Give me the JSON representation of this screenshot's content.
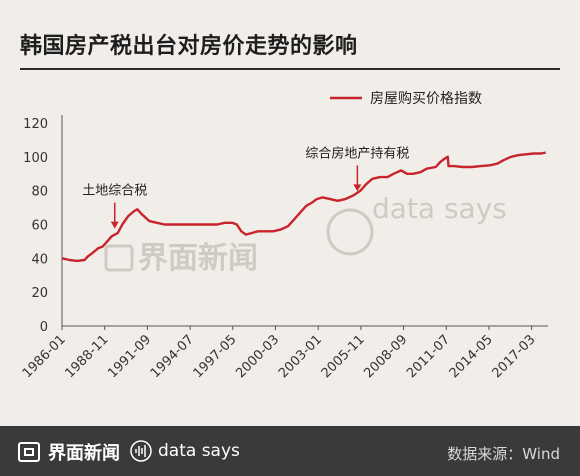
{
  "title": "韩国房产税出台对房价走势的影响",
  "chart_data": {
    "type": "line",
    "series": [
      {
        "name": "房屋购买价格指数",
        "color": "#c8242b",
        "points": [
          [
            1986.0,
            40
          ],
          [
            1986.5,
            39
          ],
          [
            1987.0,
            38.5
          ],
          [
            1987.5,
            39
          ],
          [
            1987.7,
            41
          ],
          [
            1988.0,
            43
          ],
          [
            1988.4,
            46
          ],
          [
            1988.7,
            47
          ],
          [
            1989.0,
            50
          ],
          [
            1989.3,
            53
          ],
          [
            1989.7,
            55
          ],
          [
            1990.0,
            60
          ],
          [
            1990.4,
            65
          ],
          [
            1990.8,
            68
          ],
          [
            1991.0,
            69
          ],
          [
            1991.3,
            66
          ],
          [
            1991.8,
            62
          ],
          [
            1992.3,
            61
          ],
          [
            1992.8,
            60
          ],
          [
            1993.5,
            60
          ],
          [
            1994.5,
            60
          ],
          [
            1995.5,
            60
          ],
          [
            1996.3,
            60
          ],
          [
            1996.8,
            61
          ],
          [
            1997.3,
            61
          ],
          [
            1997.6,
            60
          ],
          [
            1997.9,
            56
          ],
          [
            1998.2,
            54
          ],
          [
            1998.6,
            55
          ],
          [
            1999.0,
            56
          ],
          [
            1999.5,
            56
          ],
          [
            2000.0,
            56
          ],
          [
            2000.5,
            57
          ],
          [
            2001.0,
            59
          ],
          [
            2001.4,
            63
          ],
          [
            2001.8,
            67
          ],
          [
            2002.2,
            71
          ],
          [
            2002.6,
            73
          ],
          [
            2002.9,
            75
          ],
          [
            2003.3,
            76
          ],
          [
            2003.8,
            75
          ],
          [
            2004.3,
            74
          ],
          [
            2004.8,
            75
          ],
          [
            2005.3,
            77
          ],
          [
            2005.8,
            80
          ],
          [
            2006.2,
            84
          ],
          [
            2006.6,
            87
          ],
          [
            2007.1,
            88
          ],
          [
            2007.6,
            88
          ],
          [
            2008.0,
            90
          ],
          [
            2008.5,
            92
          ],
          [
            2008.9,
            90
          ],
          [
            2009.3,
            90
          ],
          [
            2009.8,
            91
          ],
          [
            2010.2,
            93
          ],
          [
            2010.8,
            94
          ],
          [
            2011.1,
            97
          ],
          [
            2011.4,
            99
          ],
          [
            2011.6,
            100
          ],
          [
            2011.65,
            94.5
          ],
          [
            2012.0,
            94.5
          ],
          [
            2012.6,
            94
          ],
          [
            2013.2,
            94
          ],
          [
            2013.8,
            94.5
          ],
          [
            2014.4,
            95
          ],
          [
            2014.9,
            96
          ],
          [
            2015.3,
            98
          ],
          [
            2015.8,
            100
          ],
          [
            2016.3,
            101
          ],
          [
            2016.8,
            101.5
          ],
          [
            2017.3,
            102
          ],
          [
            2017.8,
            102
          ],
          [
            2018.1,
            102.5
          ]
        ]
      }
    ],
    "xticks": [
      "1986-01",
      "1988-11",
      "1991-09",
      "1994-07",
      "1997-05",
      "2000-03",
      "2003-01",
      "2005-11",
      "2008-09",
      "2011-07",
      "2014-05",
      "2017-03"
    ],
    "xtick_values": [
      1986.0,
      1988.833,
      1991.667,
      1994.5,
      1997.333,
      2000.167,
      2003.0,
      2005.833,
      2008.667,
      2011.5,
      2014.333,
      2017.167
    ],
    "xlim": [
      1986.0,
      2018.25
    ],
    "ylim": [
      0,
      120
    ],
    "yticks": [
      0,
      20,
      40,
      60,
      80,
      100,
      120
    ],
    "annotations": [
      {
        "text": "土地综合税",
        "x": 1989.5,
        "y": 54
      },
      {
        "text": "综合房地产持有税",
        "x": 2005.6,
        "y": 76
      }
    ],
    "legend_position": "top-right"
  },
  "watermarks": {
    "brand": "界面新闻",
    "tagline": "data says"
  },
  "footer": {
    "brand": "界面新闻",
    "tagline": "data says",
    "source": "数据来源：Wind"
  }
}
